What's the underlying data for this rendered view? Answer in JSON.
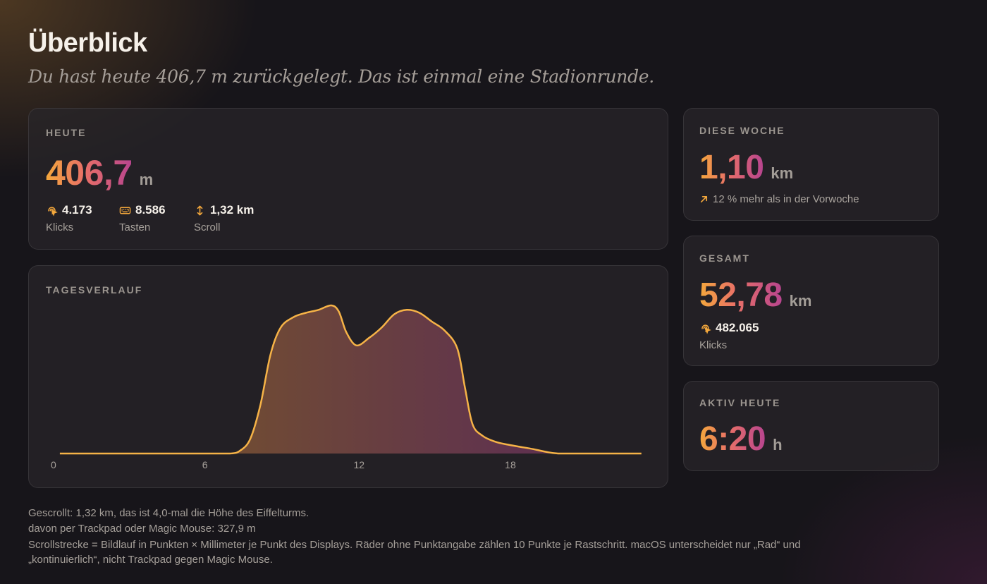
{
  "page": {
    "title": "Überblick",
    "subtitle": "Du hast heute 406,7 m zurückgelegt. Das ist einmal eine Stadionrunde."
  },
  "today": {
    "label": "HEUTE",
    "value_int": "406",
    "value_dec": ",7",
    "unit": "m",
    "stats": [
      {
        "icon": "click-icon",
        "value": "4.173",
        "label": "Klicks"
      },
      {
        "icon": "keyboard-icon",
        "value": "8.586",
        "label": "Tasten"
      },
      {
        "icon": "scroll-icon",
        "value": "1,32 km",
        "label": "Scroll"
      }
    ]
  },
  "timeline": {
    "label": "TAGESVERLAUF",
    "ticks": [
      "0",
      "6",
      "12",
      "18"
    ]
  },
  "week": {
    "label": "DIESE WOCHE",
    "value": "1,10",
    "unit": "km",
    "trend_icon": "arrow-up-right-icon",
    "trend": "12 % mehr als in der Vorwoche"
  },
  "total": {
    "label": "GESAMT",
    "value": "52,78",
    "unit": "km",
    "clicks_icon": "click-icon",
    "clicks": "482.065",
    "clicks_label": "Klicks"
  },
  "active": {
    "label": "AKTIV HEUTE",
    "value": "6:20",
    "unit": "h"
  },
  "footer": {
    "line1": "Gescrollt: 1,32 km, das ist 4,0-mal die Höhe des Eiffelturms.",
    "line2": "davon per Trackpad oder Magic Mouse: 327,9 m",
    "line3a": "Scrollstrecke = Bildlauf in Punkten × Millimeter je Punkt des Displays. Räder ohne Punktangabe zählen 10 Punkte je Rastschritt. macOS unterscheidet nur „Rad“ und",
    "line3b": "„kontinuierlich“, nicht Trackpad gegen Magic Mouse."
  },
  "colors": {
    "accent_start": "#f4a83c",
    "accent_mid": "#e86f68",
    "accent_end": "#b7448f",
    "line": "#f6b347"
  },
  "chart_data": {
    "type": "area",
    "title": "TAGESVERLAUF",
    "xlabel": "",
    "ylabel": "",
    "xlim": [
      0,
      23.5
    ],
    "ylim": [
      0,
      1
    ],
    "xticks": [
      0,
      6,
      12,
      18
    ],
    "grid": false,
    "x": [
      0.25,
      6,
      7,
      7.4,
      7.8,
      8.2,
      8.6,
      9,
      9.5,
      10,
      10.5,
      11,
      11.3,
      11.6,
      12,
      12.5,
      13,
      13.5,
      14,
      14.5,
      15,
      15.5,
      16,
      16.3,
      16.6,
      17,
      17.5,
      18,
      18.5,
      19,
      19.5,
      20,
      21,
      23.3
    ],
    "y": [
      0,
      0,
      0,
      0.02,
      0.1,
      0.33,
      0.67,
      0.85,
      0.92,
      0.95,
      0.97,
      1.0,
      0.96,
      0.82,
      0.73,
      0.78,
      0.85,
      0.94,
      0.97,
      0.95,
      0.89,
      0.83,
      0.71,
      0.45,
      0.2,
      0.12,
      0.08,
      0.06,
      0.045,
      0.03,
      0.012,
      0,
      0,
      0
    ]
  }
}
